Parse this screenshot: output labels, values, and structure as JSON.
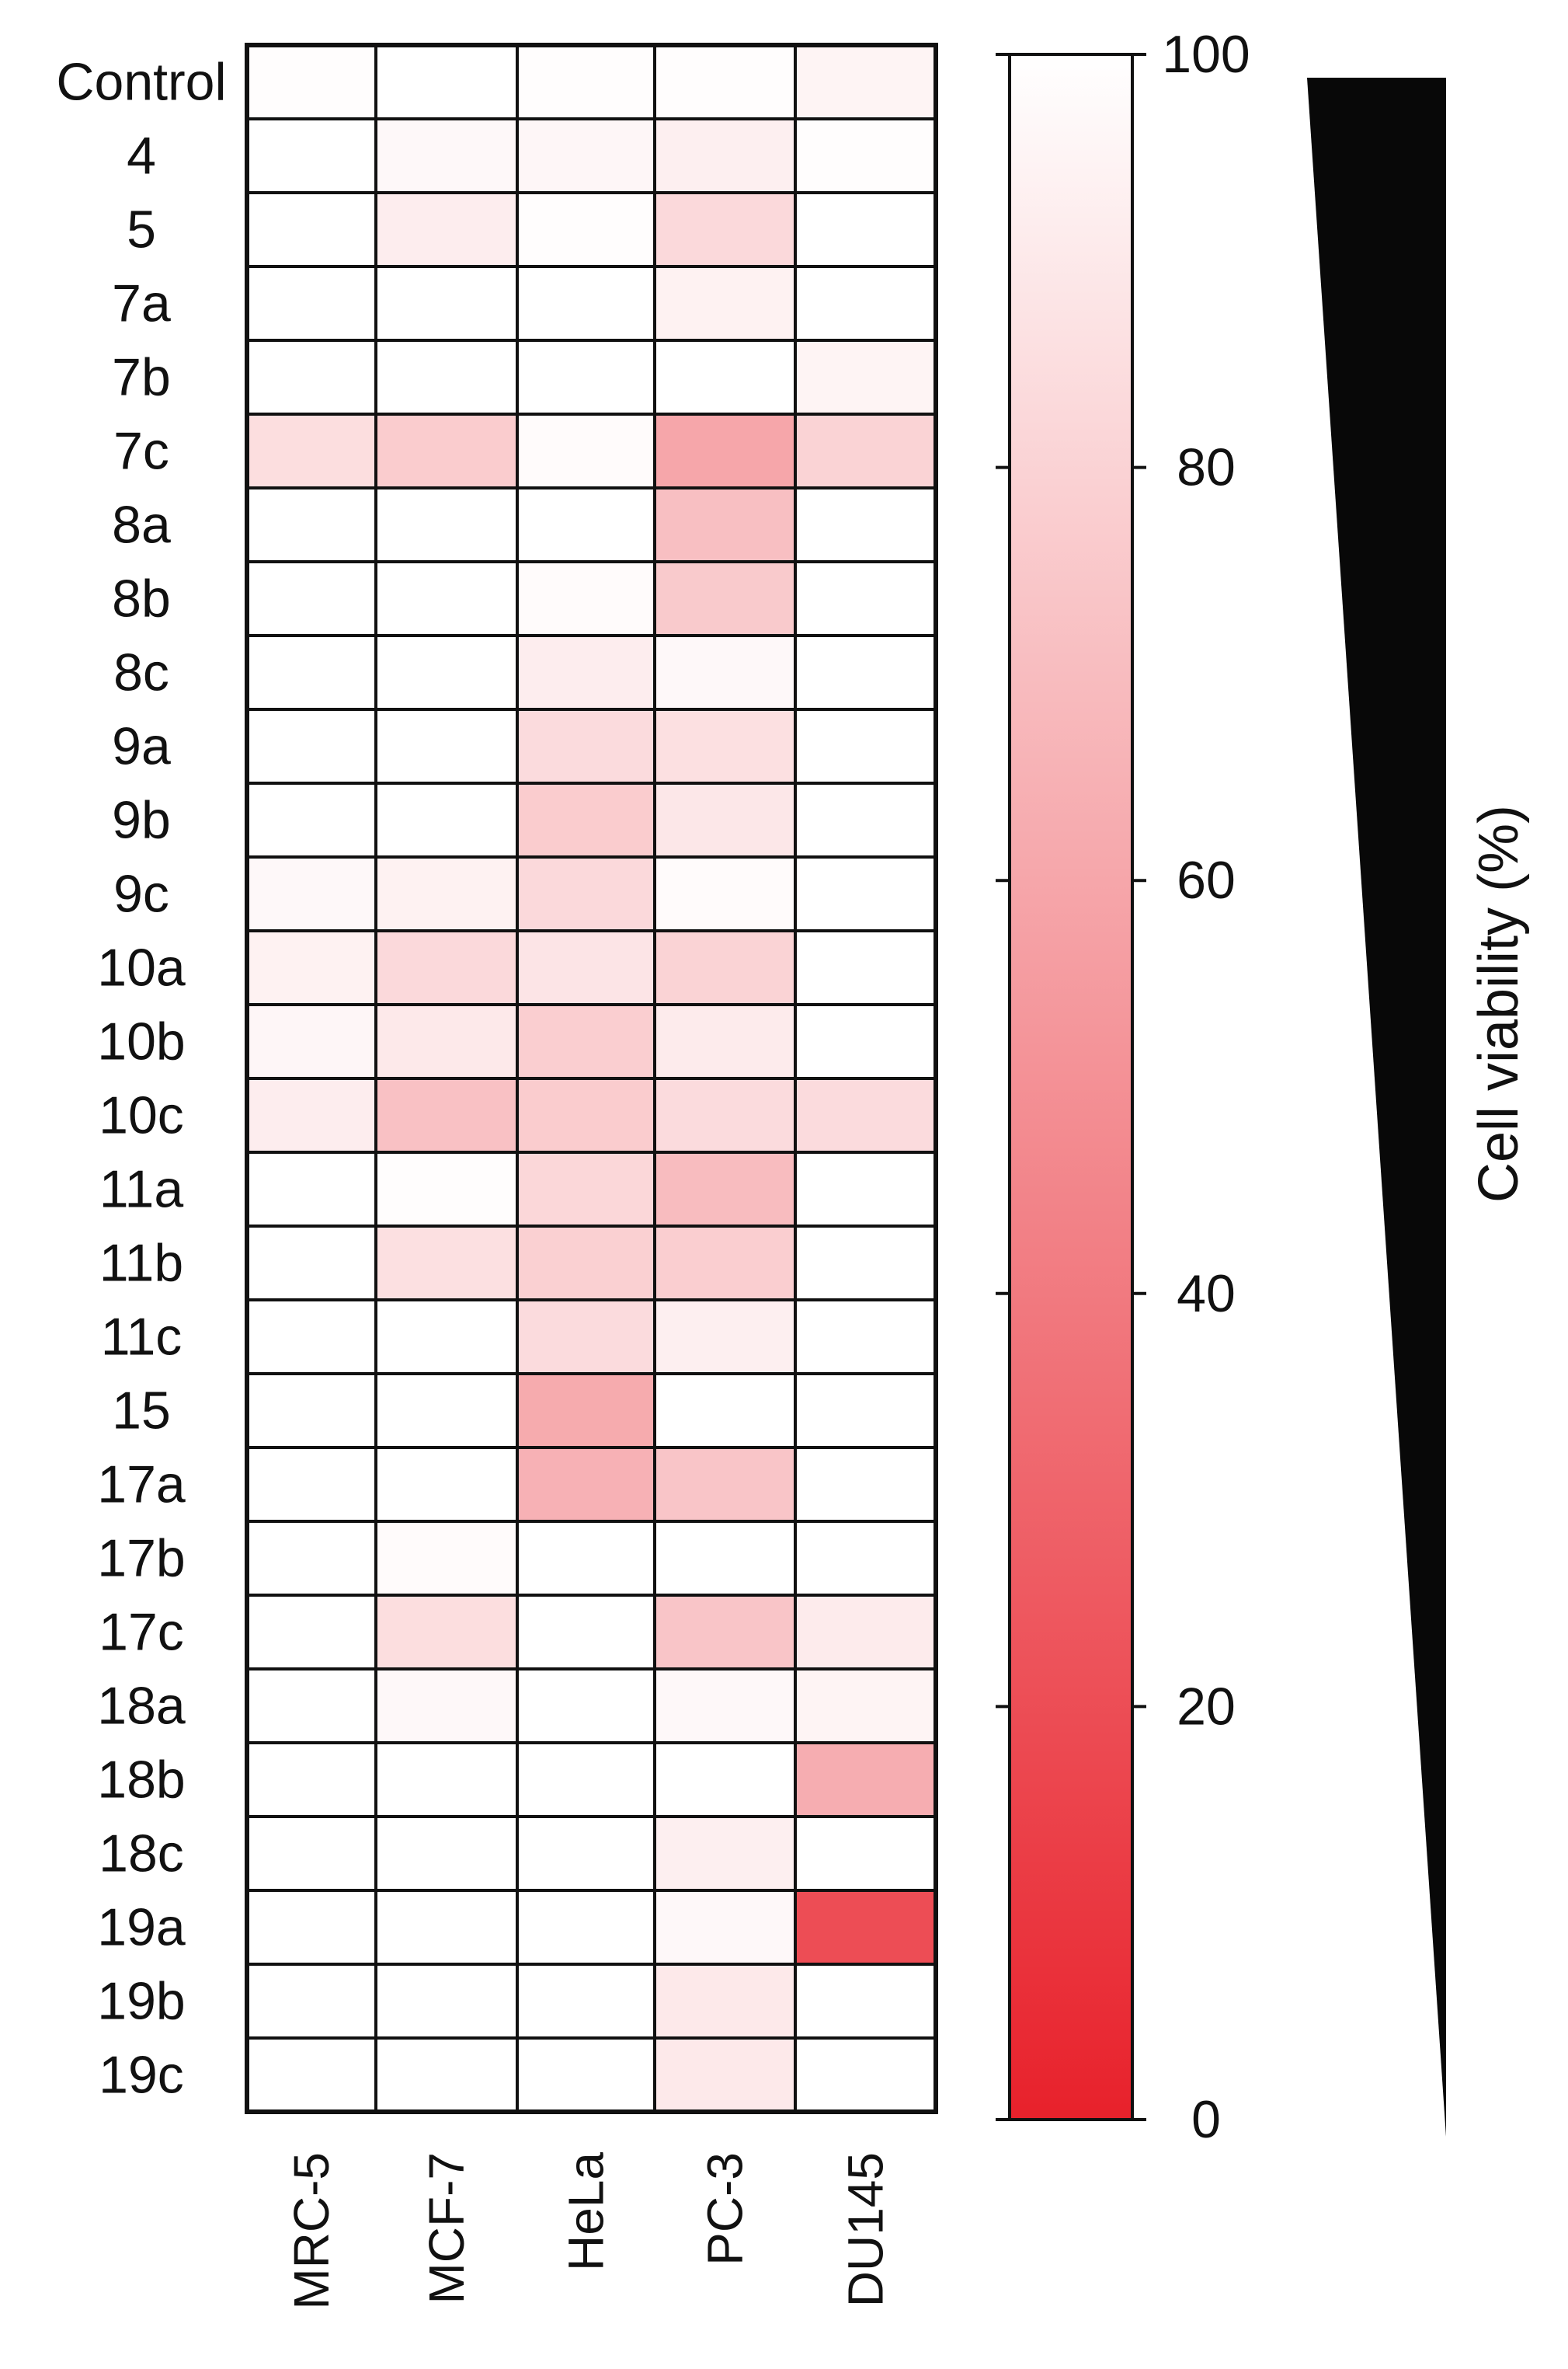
{
  "chart_data": {
    "type": "heatmap",
    "title": "",
    "xlabel": "",
    "ylabel": "",
    "rows": [
      "Control",
      "4",
      "5",
      "7a",
      "7b",
      "7c",
      "8a",
      "8b",
      "8c",
      "9a",
      "9b",
      "9c",
      "10a",
      "10b",
      "10c",
      "11a",
      "11b",
      "11c",
      "15",
      "17a",
      "17b",
      "17c",
      "18a",
      "18b",
      "18c",
      "19a",
      "19b",
      "19c"
    ],
    "columns": [
      "MRC-5",
      "MCF-7",
      "HeLa",
      "PC-3",
      "DU145"
    ],
    "values": [
      [
        99,
        100,
        99,
        99,
        95
      ],
      [
        100,
        97,
        96,
        93,
        99
      ],
      [
        100,
        92,
        99,
        83,
        100
      ],
      [
        100,
        100,
        100,
        94,
        100
      ],
      [
        100,
        100,
        100,
        100,
        95
      ],
      [
        85,
        77,
        98,
        60,
        80
      ],
      [
        100,
        100,
        100,
        71,
        100
      ],
      [
        100,
        100,
        98,
        76,
        100
      ],
      [
        100,
        100,
        92,
        97,
        100
      ],
      [
        100,
        100,
        84,
        86,
        100
      ],
      [
        100,
        100,
        77,
        89,
        100
      ],
      [
        97,
        94,
        83,
        98,
        100
      ],
      [
        94,
        83,
        88,
        80,
        100
      ],
      [
        96,
        90,
        78,
        91,
        100
      ],
      [
        92,
        72,
        77,
        84,
        84
      ],
      [
        100,
        99,
        82,
        70,
        100
      ],
      [
        100,
        86,
        79,
        78,
        100
      ],
      [
        100,
        100,
        84,
        93,
        100
      ],
      [
        100,
        100,
        62,
        100,
        100
      ],
      [
        100,
        100,
        65,
        74,
        100
      ],
      [
        100,
        98,
        100,
        100,
        100
      ],
      [
        100,
        85,
        100,
        74,
        91
      ],
      [
        100,
        97,
        100,
        97,
        95
      ],
      [
        100,
        100,
        100,
        100,
        63
      ],
      [
        100,
        100,
        100,
        93,
        100
      ],
      [
        100,
        100,
        100,
        97,
        20
      ],
      [
        100,
        100,
        100,
        90,
        100
      ],
      [
        100,
        100,
        100,
        90,
        100
      ]
    ],
    "colorbar": {
      "min": 0,
      "max": 100,
      "ticks": [
        0,
        20,
        40,
        60,
        80,
        100
      ],
      "color_min": "#e8212b",
      "color_max": "#ffffff"
    },
    "side_label": "Cell viability (%)",
    "wedge_color": "#080808",
    "grid_color": "#111111"
  }
}
